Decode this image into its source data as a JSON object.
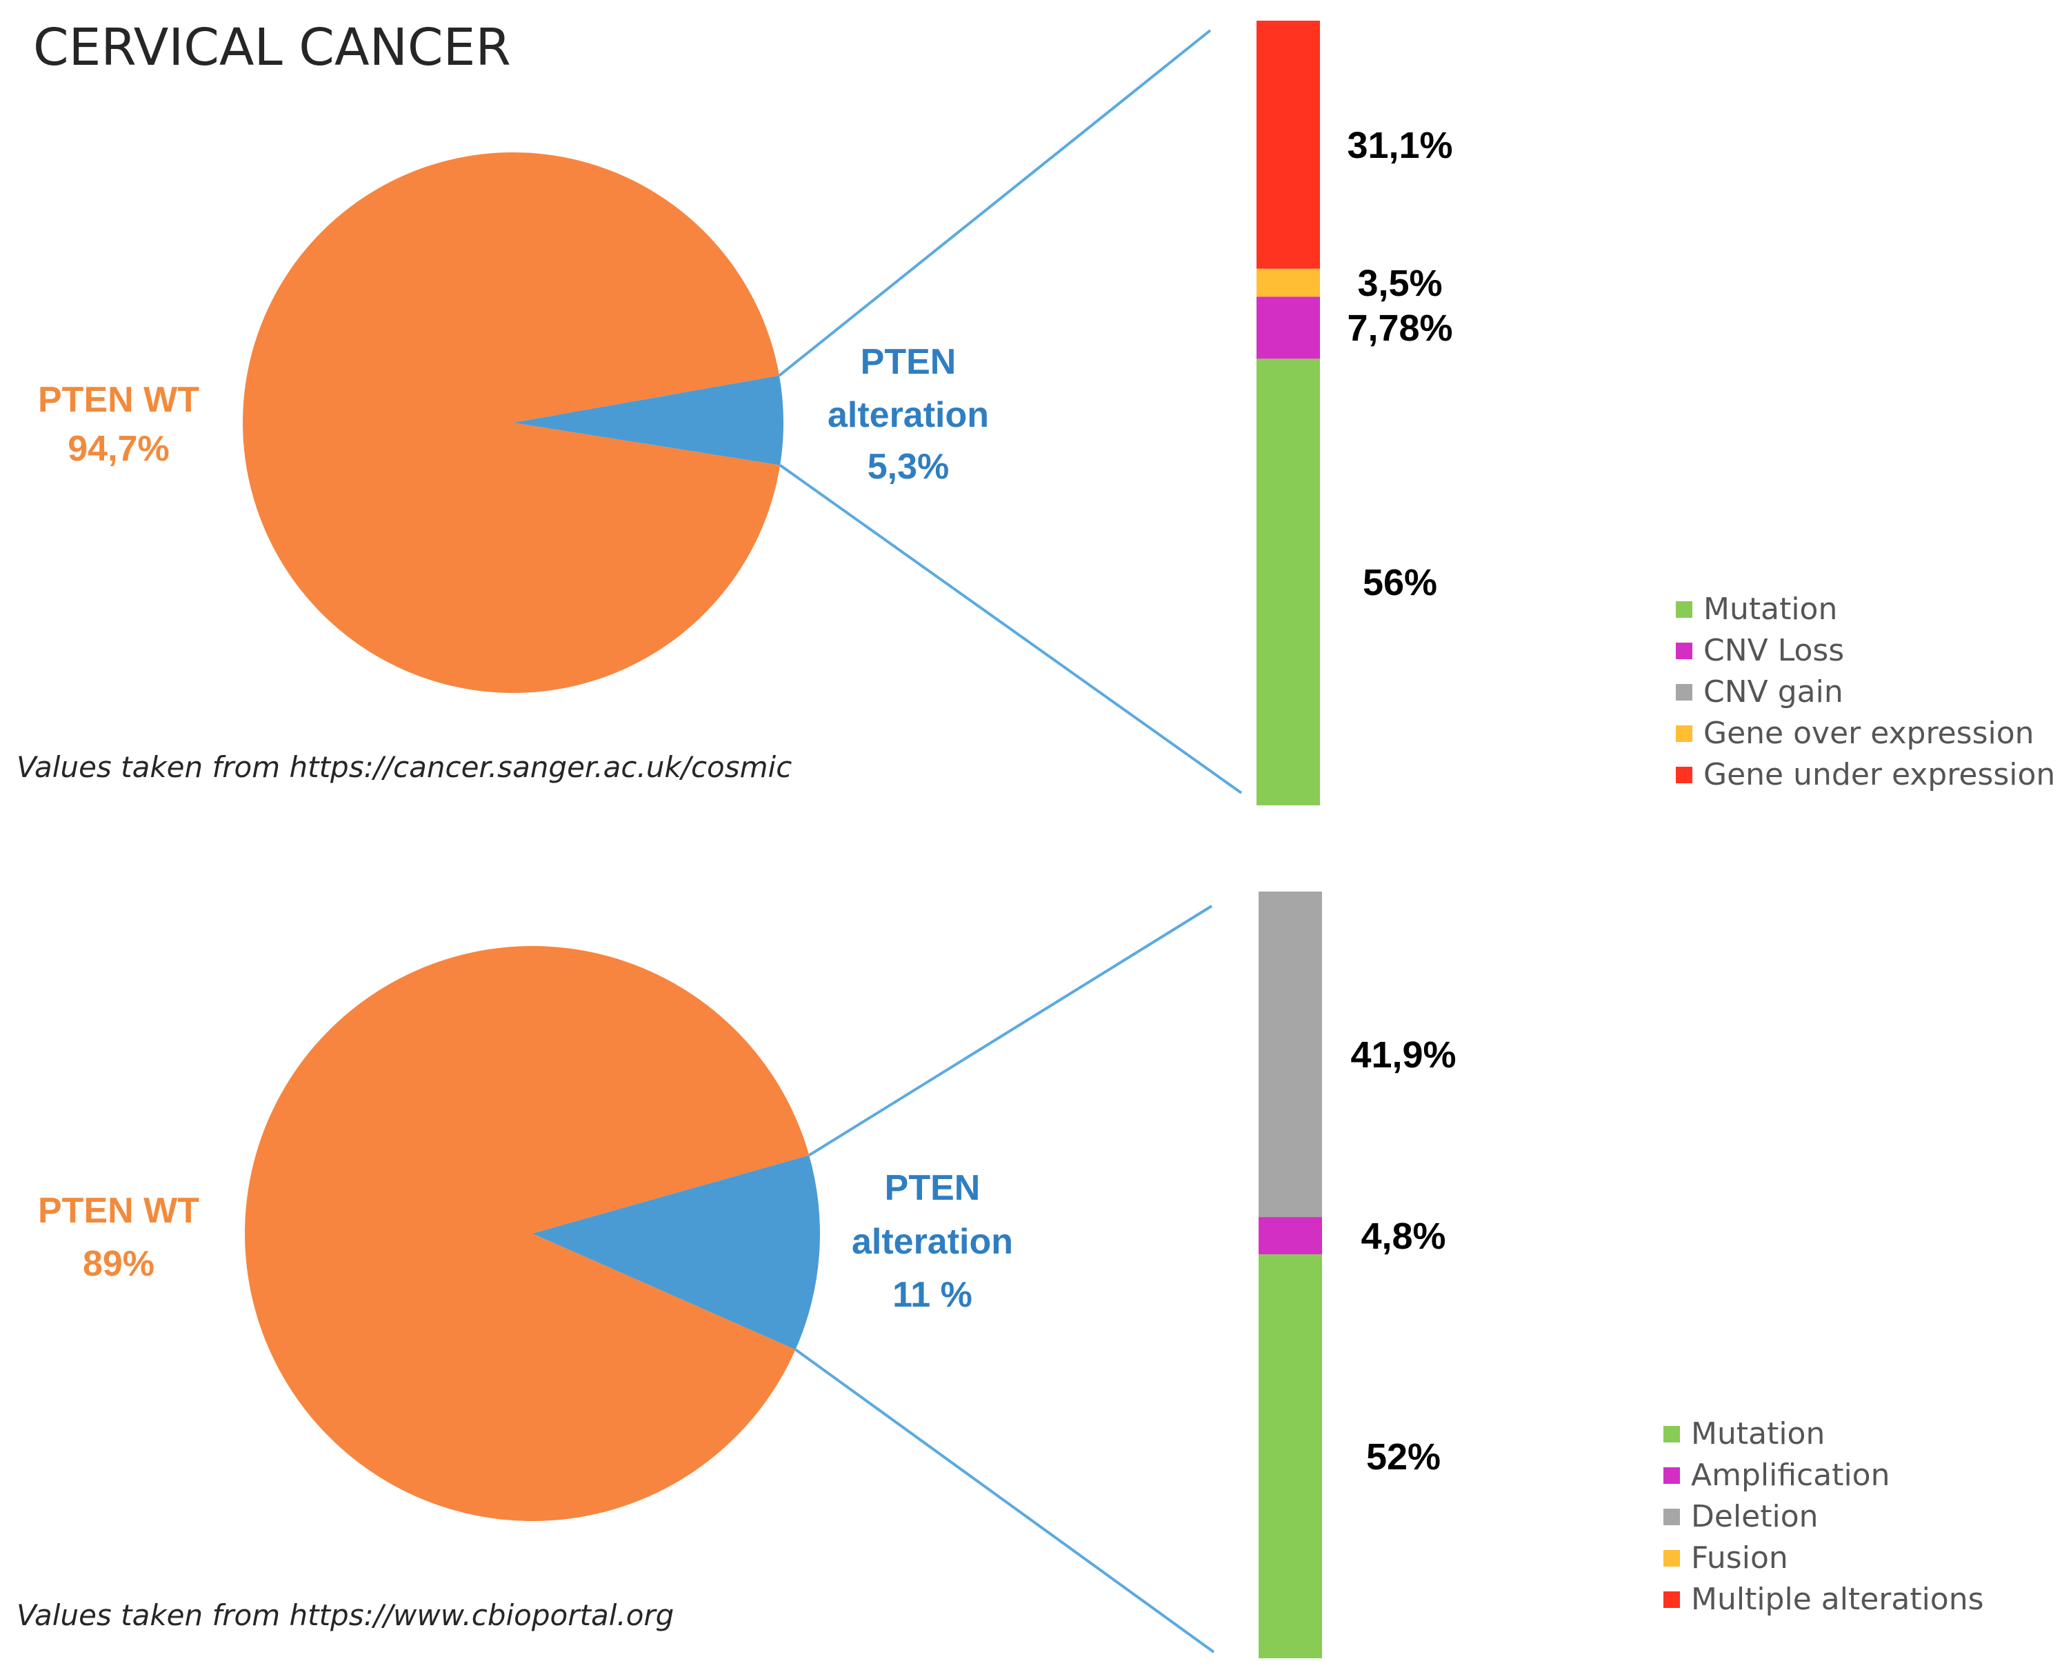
{
  "title": "CERVICAL CANCER",
  "colors": {
    "wt": "#f7853f",
    "alteration": "#4a9bd4",
    "connector": "#5aaae0",
    "wt_text": "#f28a3c",
    "alteration_text": "#2f7ec1",
    "green": "#88cc55",
    "magenta": "#d42fc4",
    "gray": "#a6a6a6",
    "yellow": "#ffbe33",
    "red": "#ff3320"
  },
  "chart_data": [
    {
      "type": "pie",
      "title": "CERVICAL CANCER",
      "source": "Values taken from https://cancer.sanger.ac.uk/cosmic",
      "slices": [
        {
          "name": "PTEN WT",
          "value": 94.7,
          "label_line1": "PTEN WT",
          "label_line2": "94,7%",
          "color_key": "wt"
        },
        {
          "name": "PTEN alteration",
          "value": 5.3,
          "label_line1": "PTEN",
          "label_line2": "alteration",
          "label_line3": "5,3%",
          "color_key": "alteration"
        }
      ],
      "breakdown": {
        "type": "stacked-bar",
        "segments_bottom_to_top": [
          {
            "category": "Mutation",
            "value": 56,
            "label": "56%",
            "color_key": "green"
          },
          {
            "category": "CNV Loss",
            "value": 7.78,
            "label": "7,78%",
            "color_key": "magenta"
          },
          {
            "category": "Gene over expression",
            "value": 3.5,
            "label": "3,5%",
            "color_key": "yellow"
          },
          {
            "category": "Gene under expression",
            "value": 31.1,
            "label": "31,1%",
            "color_key": "red"
          }
        ]
      },
      "legend": [
        {
          "label": "Mutation",
          "color_key": "green"
        },
        {
          "label": "CNV Loss",
          "color_key": "magenta"
        },
        {
          "label": "CNV gain",
          "color_key": "gray"
        },
        {
          "label": "Gene over expression",
          "color_key": "yellow"
        },
        {
          "label": "Gene under expression",
          "color_key": "red"
        }
      ]
    },
    {
      "type": "pie",
      "source": "Values taken from https://www.cbioportal.org",
      "slices": [
        {
          "name": "PTEN WT",
          "value": 89,
          "label_line1": "PTEN WT",
          "label_line2": "89%",
          "color_key": "wt"
        },
        {
          "name": "PTEN alteration",
          "value": 11,
          "label_line1": "PTEN",
          "label_line2": "alteration",
          "label_line3": "11 %",
          "color_key": "alteration"
        }
      ],
      "breakdown": {
        "type": "stacked-bar",
        "segments_bottom_to_top": [
          {
            "category": "Mutation",
            "value": 52,
            "label": "52%",
            "color_key": "green"
          },
          {
            "category": "Amplification",
            "value": 4.8,
            "label": "4,8%",
            "color_key": "magenta"
          },
          {
            "category": "Deletion",
            "value": 41.9,
            "label": "41,9%",
            "color_key": "gray"
          }
        ]
      },
      "legend": [
        {
          "label": "Mutation",
          "color_key": "green"
        },
        {
          "label": "Amplification",
          "color_key": "magenta"
        },
        {
          "label": "Deletion",
          "color_key": "gray"
        },
        {
          "label": "Fusion",
          "color_key": "yellow"
        },
        {
          "label": "Multiple alterations",
          "color_key": "red"
        }
      ]
    }
  ]
}
